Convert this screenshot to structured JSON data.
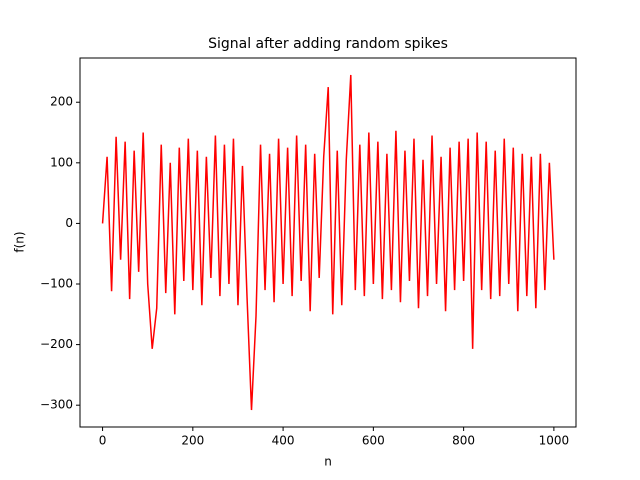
{
  "chart_data": {
    "type": "line",
    "title": "Signal after adding random spikes",
    "xlabel": "n",
    "ylabel": "f(n)",
    "xlim": [
      -50,
      1049
    ],
    "ylim": [
      -336,
      273
    ],
    "xticks": [
      0,
      200,
      400,
      600,
      800,
      1000
    ],
    "yticks": [
      {
        "value": -300,
        "label": "−300"
      },
      {
        "value": -200,
        "label": "−200"
      },
      {
        "value": -100,
        "label": "−100"
      },
      0,
      100,
      200
    ],
    "x": [
      0,
      10,
      20,
      30,
      40,
      50,
      60,
      70,
      80,
      90,
      100,
      110,
      120,
      130,
      140,
      150,
      160,
      170,
      180,
      190,
      200,
      210,
      220,
      230,
      240,
      250,
      260,
      270,
      280,
      290,
      300,
      310,
      320,
      330,
      340,
      350,
      360,
      370,
      380,
      390,
      400,
      410,
      420,
      430,
      440,
      450,
      460,
      470,
      480,
      490,
      500,
      510,
      520,
      530,
      540,
      550,
      560,
      570,
      580,
      590,
      600,
      610,
      620,
      630,
      640,
      650,
      660,
      670,
      680,
      690,
      700,
      710,
      720,
      730,
      740,
      750,
      760,
      770,
      780,
      790,
      800,
      810,
      820,
      830,
      840,
      850,
      860,
      870,
      880,
      890,
      900,
      910,
      920,
      930,
      940,
      950,
      960,
      970,
      980,
      990,
      1000
    ],
    "series": [
      {
        "name": "f(n)",
        "color": "#ff0000",
        "values": [
          0,
          110,
          -112,
          143,
          -60,
          135,
          -125,
          120,
          -80,
          150,
          -100,
          -207,
          -140,
          130,
          -115,
          100,
          -150,
          125,
          -95,
          140,
          -110,
          120,
          -135,
          110,
          -90,
          145,
          -120,
          130,
          -100,
          140,
          -135,
          95,
          -120,
          -308,
          -153,
          130,
          -110,
          115,
          -130,
          140,
          -100,
          125,
          -120,
          145,
          -95,
          130,
          -145,
          115,
          -90,
          110,
          225,
          -150,
          120,
          -135,
          105,
          245,
          -110,
          130,
          -120,
          150,
          -100,
          135,
          -125,
          115,
          -110,
          153,
          -130,
          120,
          -95,
          140,
          -140,
          105,
          -120,
          145,
          -100,
          110,
          -145,
          125,
          -110,
          135,
          -95,
          140,
          -207,
          150,
          -110,
          135,
          -125,
          120,
          -120,
          140,
          -100,
          125,
          -145,
          115,
          -120,
          110,
          -140,
          115,
          -110,
          100,
          -60
        ]
      }
    ]
  }
}
